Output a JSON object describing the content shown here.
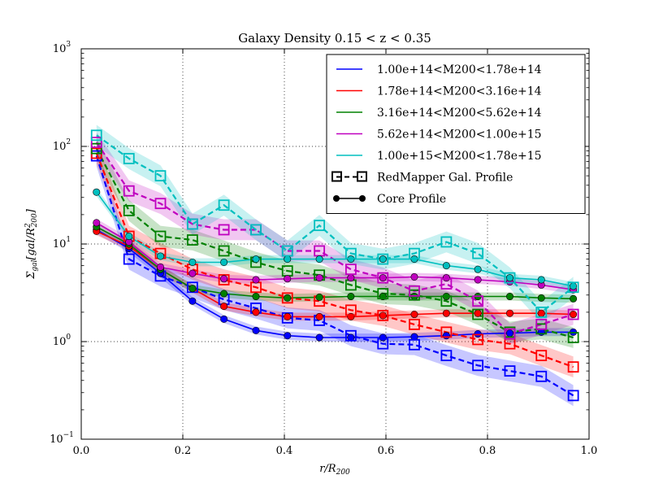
{
  "chart_data": {
    "type": "line",
    "title": "Galaxy Density 0.15 < z < 0.35",
    "xlabel": "r/R200",
    "ylabel": "Σgal [gal/R²200]",
    "xlim": [
      0.0,
      1.0
    ],
    "ylim": [
      0.1,
      1000
    ],
    "yscale": "log",
    "grid": true,
    "legend_position": "top-right",
    "x_ticks": [
      "0.0",
      "0.2",
      "0.4",
      "0.6",
      "0.8",
      "1.0"
    ],
    "y_ticks": [
      {
        "base": "10",
        "exp": "−1"
      },
      {
        "base": "10",
        "exp": "0"
      },
      {
        "base": "10",
        "exp": "1"
      },
      {
        "base": "10",
        "exp": "2"
      },
      {
        "base": "10",
        "exp": "3"
      }
    ],
    "x": [
      0.03,
      0.094,
      0.156,
      0.219,
      0.281,
      0.344,
      0.406,
      0.469,
      0.531,
      0.594,
      0.656,
      0.719,
      0.781,
      0.844,
      0.906,
      0.969
    ],
    "series": [
      {
        "name": "1.00e+14<M200<1.78e+14",
        "color": "#0000ff",
        "redmapper": [
          80,
          7.0,
          4.7,
          3.6,
          2.7,
          2.2,
          1.75,
          1.65,
          1.15,
          0.95,
          0.93,
          0.72,
          0.57,
          0.5,
          0.44,
          0.28
        ],
        "core": [
          14,
          9.0,
          5.0,
          2.6,
          1.7,
          1.3,
          1.15,
          1.1,
          1.1,
          1.1,
          1.12,
          1.15,
          1.2,
          1.22,
          1.25,
          1.25
        ]
      },
      {
        "name": "1.78e+14<M200<3.16e+14",
        "color": "#ff0000",
        "redmapper": [
          85,
          12,
          8.0,
          5.5,
          4.3,
          3.6,
          2.8,
          2.6,
          2.1,
          1.85,
          1.5,
          1.25,
          1.05,
          0.95,
          0.72,
          0.55
        ],
        "core": [
          13.5,
          9.5,
          5.5,
          3.5,
          2.3,
          2.0,
          1.8,
          1.8,
          1.8,
          1.85,
          1.9,
          1.95,
          1.95,
          1.95,
          1.95,
          1.9
        ]
      },
      {
        "name": "3.16e+14<M200<5.62e+14",
        "color": "#008000",
        "redmapper": [
          95,
          22,
          12,
          11,
          8.5,
          6.5,
          5.3,
          4.8,
          3.8,
          3.1,
          3.0,
          2.6,
          1.9,
          1.25,
          1.35,
          1.1
        ],
        "core": [
          15,
          10,
          5.5,
          3.5,
          3.1,
          2.9,
          2.8,
          2.85,
          2.9,
          2.9,
          2.9,
          2.9,
          2.9,
          2.9,
          2.8,
          2.75
        ]
      },
      {
        "name": "5.62e+14<M200<1.00e+15",
        "color": "#bf00bf",
        "redmapper": [
          110,
          35,
          26,
          16,
          14,
          14,
          8.5,
          8.5,
          5.5,
          4.5,
          3.3,
          3.9,
          2.6,
          1.2,
          1.5,
          1.9
        ],
        "core": [
          16.5,
          10.5,
          5.8,
          5.0,
          4.4,
          4.3,
          4.4,
          4.5,
          4.5,
          4.5,
          4.6,
          4.5,
          4.3,
          4.1,
          3.8,
          3.4
        ]
      },
      {
        "name": "1.00e+15<M200<1.78e+15",
        "color": "#00bfbf",
        "redmapper": [
          130,
          75,
          50,
          16,
          25,
          14,
          8.5,
          15.5,
          8.0,
          7.0,
          8.0,
          10.5,
          8.0,
          4.5,
          2.0,
          3.6
        ],
        "core": [
          34,
          12,
          7.5,
          6.5,
          6.5,
          7.0,
          7.0,
          7.0,
          7.0,
          7.0,
          7.0,
          6.0,
          5.5,
          4.5,
          4.3,
          3.7
        ]
      }
    ],
    "legend_extra": [
      {
        "label": "RedMapper Gal.  Profile",
        "style": "dashed-square"
      },
      {
        "label": "Core Profile",
        "style": "solid-circle"
      }
    ]
  }
}
